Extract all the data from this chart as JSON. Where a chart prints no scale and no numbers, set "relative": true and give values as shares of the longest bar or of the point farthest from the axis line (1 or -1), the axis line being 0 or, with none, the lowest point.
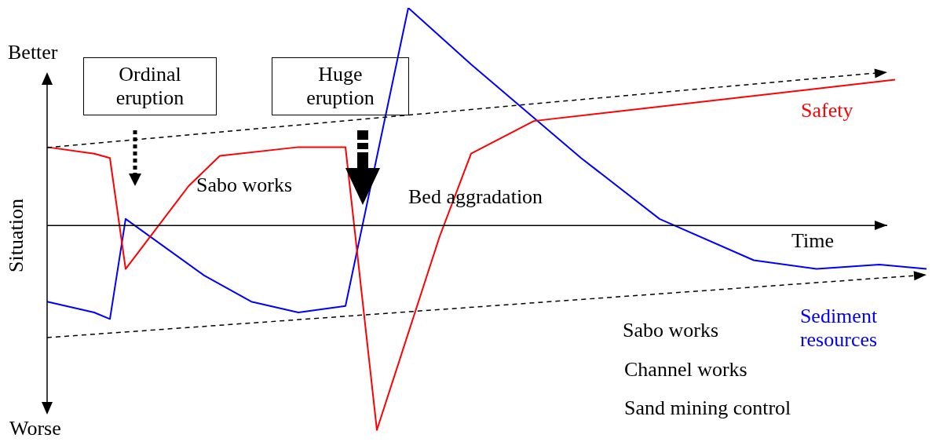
{
  "chart_data": {
    "type": "line",
    "relative": true,
    "legend": false,
    "marker": "none",
    "ref_lines": [
      {
        "axis": "y",
        "value": 0,
        "color": "#000000",
        "line_style": "solid"
      }
    ],
    "xlabel": "Time",
    "ylabel": "Situation",
    "annotations": [
      "Better",
      "Worse",
      "Ordinal eruption",
      "Huge eruption",
      "Sabo works",
      "Bed aggradation",
      "Sabo works",
      "Channel works",
      "Sand mining control"
    ],
    "categories": [
      null,
      null,
      null,
      null,
      null,
      null,
      null,
      null,
      null,
      null,
      null,
      null,
      null,
      null,
      null,
      null,
      null,
      null,
      null,
      null,
      null,
      null,
      null,
      null,
      null,
      null,
      null,
      null,
      null,
      null,
      null,
      null,
      null,
      null,
      null,
      null,
      null,
      null,
      null,
      null,
      null,
      null,
      null,
      null,
      null,
      null,
      null,
      null,
      null,
      null,
      null,
      null,
      null,
      null,
      null,
      null,
      null
    ],
    "series": [
      {
        "name": "Safety",
        "color": "#ff0000",
        "line_style": "solid",
        "values": [
          0.36,
          null,
          null,
          0.33,
          0.31,
          -0.2,
          null,
          null,
          null,
          0.18,
          null,
          0.32,
          null,
          null,
          null,
          null,
          0.36,
          null,
          null,
          0.36,
          null,
          -0.94,
          null,
          null,
          null,
          -0.05,
          null,
          0.33,
          null,
          null,
          null,
          0.48,
          null,
          null,
          null,
          null,
          null,
          null,
          null,
          null,
          null,
          null,
          null,
          null,
          null,
          null,
          null,
          null,
          null,
          null,
          null,
          null,
          null,
          null,
          0.67,
          null,
          null
        ]
      },
      {
        "name": "Sediment resources",
        "color": "#0000ff",
        "line_style": "solid",
        "values": [
          -0.35,
          null,
          null,
          -0.4,
          -0.43,
          0.03,
          null,
          null,
          null,
          null,
          -0.23,
          null,
          null,
          -0.35,
          null,
          null,
          -0.4,
          null,
          null,
          -0.37,
          null,
          null,
          null,
          1,
          null,
          null,
          null,
          0.74,
          null,
          null,
          null,
          null,
          null,
          null,
          0.31,
          null,
          null,
          null,
          null,
          0.03,
          null,
          null,
          null,
          null,
          null,
          -0.16,
          null,
          null,
          null,
          -0.2,
          null,
          null,
          null,
          -0.18,
          null,
          null,
          -0.2
        ]
      }
    ]
  }
}
